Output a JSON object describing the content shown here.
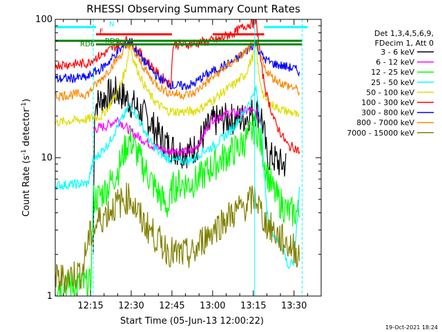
{
  "chart_data": {
    "type": "line",
    "title": "RHESSI Observing Summary Count Rates",
    "xlabel": "Start Time (05-Jun-13 12:00:22)",
    "ylabel_parts": {
      "pre": "Count Rate (s",
      "exp": "-1",
      "post": " detector",
      "post_exp": "-1",
      "close": ")"
    },
    "yscale": "log",
    "ylim": [
      1,
      100
    ],
    "xlim_minutes": [
      2,
      100
    ],
    "x_ticks": [
      {
        "minute": 15,
        "label": "12:15"
      },
      {
        "minute": 30,
        "label": "12:30"
      },
      {
        "minute": 45,
        "label": "12:45"
      },
      {
        "minute": 60,
        "label": "13:00"
      },
      {
        "minute": 75,
        "label": "13:15"
      },
      {
        "minute": 90,
        "label": "13:30"
      }
    ],
    "y_ticks": [
      {
        "value": 1,
        "label": "1"
      },
      {
        "value": 10,
        "label": "10"
      },
      {
        "value": 100,
        "label": "100"
      }
    ],
    "legend_header": [
      "Det 1,3,4,5,6,9,",
      "FDecim 1, Att 0"
    ],
    "series": [
      {
        "name": "3 - 6 keV",
        "color": "#000000",
        "points": [
          [
            16,
            2
          ],
          [
            16.5,
            24
          ],
          [
            21,
            28
          ],
          [
            25,
            30
          ],
          [
            29,
            26
          ],
          [
            33,
            22
          ],
          [
            37,
            18
          ],
          [
            41,
            14
          ],
          [
            44,
            12
          ],
          [
            46,
            11.5
          ],
          [
            48,
            11
          ],
          [
            52,
            11
          ],
          [
            54,
            12
          ],
          [
            57,
            15
          ],
          [
            60,
            18
          ],
          [
            63,
            19
          ],
          [
            66,
            19
          ],
          [
            70,
            19
          ],
          [
            73,
            20
          ],
          [
            76,
            22
          ],
          [
            78,
            20
          ],
          [
            79,
            15
          ],
          [
            80,
            10
          ],
          [
            82,
            10
          ],
          [
            85,
            9
          ],
          [
            87,
            9
          ]
        ]
      },
      {
        "name": "6 - 12 keV",
        "color": "#ff00ff",
        "points": [
          [
            16,
            16
          ],
          [
            21,
            17
          ],
          [
            25,
            19
          ],
          [
            29,
            16
          ],
          [
            33,
            14
          ],
          [
            37,
            12.5
          ],
          [
            41,
            11.5
          ],
          [
            44,
            11
          ],
          [
            46,
            11.5
          ],
          [
            48,
            11
          ],
          [
            52,
            11
          ],
          [
            54,
            12
          ],
          [
            57,
            15
          ],
          [
            60,
            19
          ],
          [
            63,
            20
          ],
          [
            66,
            21
          ],
          [
            70,
            21
          ],
          [
            73,
            22
          ],
          [
            76,
            21
          ],
          [
            78,
            18
          ]
        ]
      },
      {
        "name": "12 - 25 keV",
        "color": "#00ff00",
        "points": [
          [
            2,
            1.2
          ],
          [
            15,
            1.2
          ],
          [
            16,
            5
          ],
          [
            18,
            5.2
          ],
          [
            21,
            6
          ],
          [
            25,
            8
          ],
          [
            28,
            12
          ],
          [
            29.5,
            13.5
          ],
          [
            31,
            12
          ],
          [
            34,
            9
          ],
          [
            37,
            7
          ],
          [
            40,
            5.5
          ],
          [
            43,
            4.5
          ],
          [
            44,
            4.3
          ],
          [
            45,
            6
          ],
          [
            48,
            6.5
          ],
          [
            52,
            6.5
          ],
          [
            55,
            7
          ],
          [
            58,
            8
          ],
          [
            61,
            9
          ],
          [
            64,
            10
          ],
          [
            67,
            11
          ],
          [
            70,
            12
          ],
          [
            73,
            14
          ],
          [
            75,
            16
          ],
          [
            76,
            17
          ],
          [
            78,
            12
          ],
          [
            80,
            8
          ],
          [
            82,
            6
          ],
          [
            84,
            5
          ],
          [
            86,
            4.5
          ],
          [
            88,
            4
          ],
          [
            92,
            4
          ]
        ]
      },
      {
        "name": "25 - 50 keV",
        "color": "#00ffff",
        "points": [
          [
            2,
            6.3
          ],
          [
            14,
            6.5
          ],
          [
            16,
            9.5
          ],
          [
            19,
            11
          ],
          [
            22,
            13
          ],
          [
            25,
            17
          ],
          [
            28,
            21
          ],
          [
            29.5,
            24
          ],
          [
            31,
            22
          ],
          [
            34,
            17
          ],
          [
            37,
            13
          ],
          [
            40,
            11
          ],
          [
            43,
            10
          ],
          [
            46,
            9.5
          ],
          [
            50,
            9.5
          ],
          [
            53,
            9.7
          ],
          [
            56,
            11
          ],
          [
            60,
            12
          ],
          [
            64,
            14
          ],
          [
            68,
            17
          ],
          [
            72,
            22
          ],
          [
            75,
            28
          ],
          [
            76,
            32
          ],
          [
            77,
            24
          ],
          [
            78,
            16
          ],
          [
            79,
            8
          ],
          [
            80,
            4
          ],
          [
            82,
            3
          ],
          [
            84,
            2.5
          ],
          [
            86,
            2.2
          ],
          [
            88,
            1.6
          ],
          [
            90,
            1.8
          ],
          [
            92,
            6
          ]
        ]
      },
      {
        "name": "50 - 100 keV",
        "color": "#dddd00",
        "points": [
          [
            2,
            18
          ],
          [
            14,
            19
          ],
          [
            16,
            19.5
          ],
          [
            19,
            20
          ],
          [
            22,
            24
          ],
          [
            25,
            30
          ],
          [
            28,
            44
          ],
          [
            29.5,
            66
          ],
          [
            31,
            50
          ],
          [
            34,
            36
          ],
          [
            37,
            28
          ],
          [
            40,
            24
          ],
          [
            43,
            22
          ],
          [
            46,
            21.5
          ],
          [
            50,
            21.5
          ],
          [
            53,
            21.7
          ],
          [
            56,
            23
          ],
          [
            60,
            26
          ],
          [
            64,
            30
          ],
          [
            68,
            34
          ],
          [
            72,
            40
          ],
          [
            75,
            55
          ],
          [
            76,
            64
          ],
          [
            77,
            40
          ],
          [
            79,
            27
          ],
          [
            82,
            24
          ],
          [
            86,
            22
          ],
          [
            90,
            21
          ],
          [
            92,
            19
          ]
        ]
      },
      {
        "name": "100 - 300 keV",
        "color": "#ff0000",
        "points": [
          [
            2,
            47
          ],
          [
            14,
            48
          ],
          [
            16,
            52
          ],
          [
            19,
            55
          ],
          [
            22,
            60
          ],
          [
            25,
            65
          ],
          [
            28,
            70
          ],
          [
            29.5,
            72
          ],
          [
            31,
            65
          ],
          [
            34,
            55
          ],
          [
            37,
            47
          ],
          [
            40,
            40
          ],
          [
            43,
            36
          ],
          [
            44.5,
            33
          ],
          [
            45.5,
            66
          ],
          [
            50,
            66
          ],
          [
            54,
            67
          ],
          [
            57,
            69
          ],
          [
            60,
            70
          ],
          [
            63,
            72
          ],
          [
            65,
            76
          ],
          [
            68,
            80
          ],
          [
            72,
            90
          ],
          [
            75,
            94
          ],
          [
            76,
            96
          ],
          [
            77,
            70
          ],
          [
            78,
            45
          ],
          [
            80,
            28
          ],
          [
            83,
            18
          ],
          [
            86,
            14
          ],
          [
            88,
            12
          ],
          [
            90,
            12
          ],
          [
            92,
            11
          ]
        ]
      },
      {
        "name": "300 - 800 keV",
        "color": "#0000ff",
        "points": [
          [
            2,
            37
          ],
          [
            14,
            38
          ],
          [
            16,
            41
          ],
          [
            19,
            44
          ],
          [
            22,
            50
          ],
          [
            25,
            58
          ],
          [
            28,
            66
          ],
          [
            29.5,
            70
          ],
          [
            31,
            62
          ],
          [
            34,
            52
          ],
          [
            37,
            44
          ],
          [
            40,
            38
          ],
          [
            43,
            35
          ],
          [
            46,
            33
          ],
          [
            50,
            33
          ],
          [
            53,
            34
          ],
          [
            56,
            38
          ],
          [
            60,
            42
          ],
          [
            64,
            46
          ],
          [
            68,
            50
          ],
          [
            72,
            58
          ],
          [
            75,
            66
          ],
          [
            76,
            68
          ],
          [
            77,
            60
          ],
          [
            79,
            52
          ],
          [
            82,
            48
          ],
          [
            86,
            46
          ],
          [
            90,
            44
          ],
          [
            92,
            42
          ]
        ]
      },
      {
        "name": "800 - 7000 keV",
        "color": "#ff8800",
        "points": [
          [
            2,
            28
          ],
          [
            14,
            29
          ],
          [
            16,
            32
          ],
          [
            19,
            37
          ],
          [
            22,
            44
          ],
          [
            25,
            52
          ],
          [
            28,
            62
          ],
          [
            29.5,
            66
          ],
          [
            31,
            58
          ],
          [
            34,
            47
          ],
          [
            37,
            38
          ],
          [
            40,
            33
          ],
          [
            43,
            30
          ],
          [
            46,
            29
          ],
          [
            50,
            28.5
          ],
          [
            53,
            29
          ],
          [
            56,
            33
          ],
          [
            60,
            38
          ],
          [
            64,
            44
          ],
          [
            68,
            50
          ],
          [
            72,
            58
          ],
          [
            75,
            66
          ],
          [
            76,
            68
          ],
          [
            77,
            60
          ],
          [
            79,
            45
          ],
          [
            82,
            38
          ],
          [
            86,
            34
          ],
          [
            90,
            32
          ],
          [
            92,
            30
          ]
        ]
      },
      {
        "name": "7000 - 15000 keV",
        "color": "#808000",
        "points": [
          [
            2,
            1.3
          ],
          [
            12,
            1.5
          ],
          [
            14,
            2.5
          ],
          [
            18,
            3.5
          ],
          [
            21,
            4
          ],
          [
            24,
            4.5
          ],
          [
            28,
            5
          ],
          [
            29.5,
            5.3
          ],
          [
            31,
            4.5
          ],
          [
            34,
            3.5
          ],
          [
            37,
            3
          ],
          [
            40,
            2.5
          ],
          [
            43,
            2.2
          ],
          [
            46,
            2
          ],
          [
            50,
            2
          ],
          [
            53,
            2
          ],
          [
            56,
            2.5
          ],
          [
            60,
            3
          ],
          [
            64,
            3.5
          ],
          [
            68,
            4
          ],
          [
            72,
            4.5
          ],
          [
            75,
            5
          ],
          [
            76,
            5.2
          ],
          [
            77,
            4.5
          ],
          [
            79,
            3.5
          ],
          [
            82,
            3
          ],
          [
            86,
            2.5
          ],
          [
            90,
            2.2
          ],
          [
            92,
            2
          ]
        ]
      }
    ],
    "annotations": [
      {
        "label": "N",
        "color": "#00ffff",
        "y_value": 88,
        "segments": [
          [
            2,
            17
          ],
          [
            79,
            95
          ]
        ]
      },
      {
        "label": "F",
        "color": "#ff0000",
        "y_value": 78,
        "segments": [
          [
            17,
            45
          ],
          [
            60,
            79
          ]
        ]
      },
      {
        "label": "RD0",
        "color": "#008000",
        "y_value": 70,
        "segments": [
          [
            2,
            93
          ]
        ]
      },
      {
        "label": "RD6",
        "color": "#008000",
        "y_value": 66,
        "segments": [
          [
            17,
            93
          ]
        ]
      }
    ],
    "vertical_markers": [
      {
        "minute": 16,
        "color": "#00ffff",
        "style": "dashed"
      },
      {
        "minute": 75.5,
        "color": "#00ffff",
        "style": "solid"
      },
      {
        "minute": 93,
        "color": "#00ffff",
        "style": "dashed"
      }
    ],
    "timestamp": "19-Oct-2021 18:24",
    "grid": false,
    "legend_placement": "right"
  }
}
